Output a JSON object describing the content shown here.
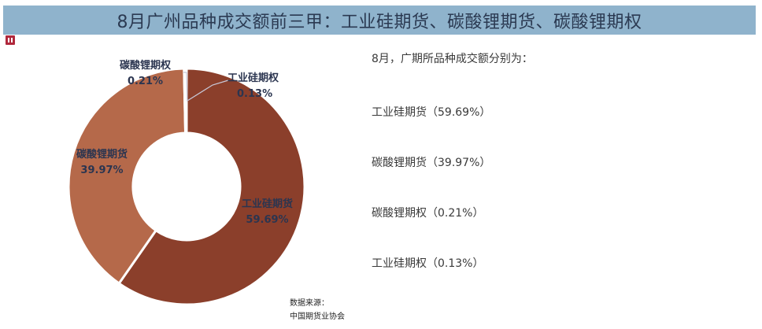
{
  "title": "8月广州品种成交额前三甲：工业硅期货、碳酸锂期货、碳酸锂期权",
  "chart_data": {
    "type": "pie",
    "subtype": "donut",
    "title": "8月广州品种成交额前三甲：工业硅期货、碳酸锂期货、碳酸锂期权",
    "categories": [
      "工业硅期货",
      "碳酸锂期货",
      "碳酸锂期权",
      "工业硅期权"
    ],
    "values": [
      59.69,
      39.97,
      0.21,
      0.13
    ],
    "unit": "%",
    "colors": [
      "#8b3f2b",
      "#b5694a",
      "#c98a6a",
      "#9c4a33"
    ],
    "labels": [
      {
        "name": "工业硅期货",
        "value": "59.69%"
      },
      {
        "name": "碳酸锂期货",
        "value": "39.97%"
      },
      {
        "name": "碳酸锂期权",
        "value": "0.21%"
      },
      {
        "name": "工业硅期权",
        "value": "0.13%"
      }
    ],
    "legend": "none"
  },
  "right_panel": {
    "intro": "8月，广期所品种成交额分别为：",
    "items": [
      "工业硅期货（59.69%）",
      "碳酸锂期货（39.97%）",
      "碳酸锂期权（0.21%）",
      "工业硅期权（0.13%）"
    ]
  },
  "source": {
    "label": "数据来源：",
    "value": "中国期货业协会"
  },
  "colors": {
    "title_bar": "#8fb3cc",
    "title_text": "#2b3a52",
    "label_text": "#2b3550"
  }
}
